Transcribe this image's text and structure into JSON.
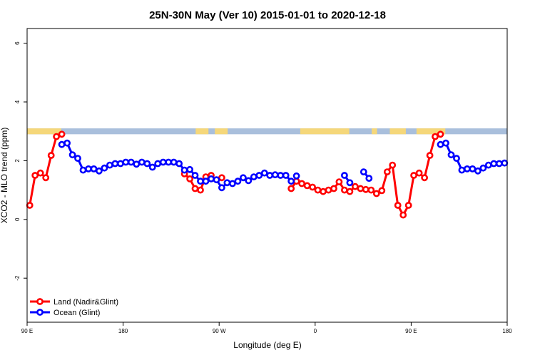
{
  "chart_data": {
    "type": "line",
    "title": "25N-30N May (Ver 10)   2015-01-01 to 2020-12-18",
    "xlabel": "Longitude (deg E)",
    "ylabel": "XCO2 - MLO trend (ppm)",
    "xlim": [
      90,
      540
    ],
    "ylim": [
      -3.5,
      6.5
    ],
    "x_ticks": [
      {
        "value": 90,
        "label": "90 E"
      },
      {
        "value": 180,
        "label": "180"
      },
      {
        "value": 270,
        "label": "90 W"
      },
      {
        "value": 360,
        "label": "0"
      },
      {
        "value": 450,
        "label": "90 E"
      },
      {
        "value": 540,
        "label": "180"
      }
    ],
    "y_ticks": [
      {
        "value": -2,
        "label": "-2"
      },
      {
        "value": 0,
        "label": "0"
      },
      {
        "value": 2,
        "label": "2"
      },
      {
        "value": 4,
        "label": "4"
      },
      {
        "value": 6,
        "label": "6"
      }
    ],
    "legend_position": "bottom-left",
    "colors": {
      "land": "#ff0000",
      "ocean": "#0000ff",
      "land_mask": "#f5d77a",
      "ocean_mask": "#a9bfdc"
    },
    "land_mask_strip": {
      "y_range": [
        2.9,
        3.1
      ],
      "land_intervals": [
        [
          90,
          122
        ],
        [
          248,
          260
        ],
        [
          266,
          278
        ],
        [
          346,
          392
        ],
        [
          413,
          418
        ],
        [
          430,
          445
        ],
        [
          455,
          482
        ]
      ]
    },
    "series": [
      {
        "name": "Land (Nadir&Glint)",
        "color": "#ff0000",
        "segments": [
          [
            [
              92.5,
              0.48
            ],
            [
              97.5,
              1.5
            ],
            [
              102.5,
              1.58
            ],
            [
              107.5,
              1.42
            ],
            [
              112.5,
              2.18
            ],
            [
              117.5,
              2.82
            ],
            [
              122.5,
              2.9
            ]
          ],
          [
            [
              237.5,
              1.55
            ],
            [
              242.5,
              1.38
            ],
            [
              247.5,
              1.05
            ],
            [
              252.5,
              1.0
            ],
            [
              257.5,
              1.45
            ],
            [
              262.5,
              1.5
            ]
          ],
          [
            [
              272.5,
              1.42
            ]
          ],
          [
            [
              337.5,
              1.05
            ],
            [
              342.5,
              1.3
            ],
            [
              347.5,
              1.22
            ],
            [
              352.5,
              1.15
            ],
            [
              357.5,
              1.1
            ],
            [
              362.5,
              1.0
            ],
            [
              367.5,
              0.95
            ],
            [
              372.5,
              1.0
            ],
            [
              377.5,
              1.05
            ],
            [
              382.5,
              1.28
            ],
            [
              387.5,
              1.0
            ],
            [
              392.5,
              0.95
            ],
            [
              397.5,
              1.12
            ],
            [
              402.5,
              1.05
            ],
            [
              407.5,
              1.02
            ],
            [
              412.5,
              1.0
            ],
            [
              417.5,
              0.88
            ],
            [
              422.5,
              0.98
            ],
            [
              427.5,
              1.62
            ],
            [
              432.5,
              1.85
            ],
            [
              437.5,
              0.48
            ],
            [
              442.5,
              0.15
            ],
            [
              447.5,
              0.48
            ],
            [
              452.5,
              1.5
            ],
            [
              457.5,
              1.58
            ],
            [
              462.5,
              1.42
            ],
            [
              467.5,
              2.18
            ],
            [
              472.5,
              2.82
            ],
            [
              477.5,
              2.9
            ]
          ]
        ]
      },
      {
        "name": "Ocean (Glint)",
        "color": "#0000ff",
        "segments": [
          [
            [
              122.5,
              2.55
            ],
            [
              127.5,
              2.6
            ],
            [
              132.5,
              2.2
            ],
            [
              137.5,
              2.08
            ],
            [
              142.5,
              1.68
            ],
            [
              147.5,
              1.72
            ],
            [
              152.5,
              1.72
            ],
            [
              157.5,
              1.65
            ],
            [
              162.5,
              1.75
            ],
            [
              167.5,
              1.85
            ],
            [
              172.5,
              1.9
            ],
            [
              177.5,
              1.9
            ],
            [
              182.5,
              1.95
            ],
            [
              187.5,
              1.95
            ],
            [
              192.5,
              1.88
            ],
            [
              197.5,
              1.95
            ],
            [
              202.5,
              1.9
            ],
            [
              207.5,
              1.78
            ],
            [
              212.5,
              1.9
            ],
            [
              217.5,
              1.95
            ],
            [
              222.5,
              1.95
            ],
            [
              227.5,
              1.95
            ],
            [
              232.5,
              1.9
            ],
            [
              237.5,
              1.68
            ],
            [
              242.5,
              1.7
            ],
            [
              247.5,
              1.5
            ],
            [
              252.5,
              1.3
            ]
          ],
          [
            [
              257.5,
              1.3
            ],
            [
              262.5,
              1.38
            ],
            [
              267.5,
              1.35
            ],
            [
              272.5,
              1.08
            ],
            [
              277.5,
              1.25
            ],
            [
              282.5,
              1.22
            ],
            [
              287.5,
              1.3
            ],
            [
              292.5,
              1.42
            ],
            [
              297.5,
              1.32
            ],
            [
              302.5,
              1.45
            ],
            [
              307.5,
              1.5
            ],
            [
              312.5,
              1.58
            ],
            [
              317.5,
              1.5
            ],
            [
              322.5,
              1.52
            ],
            [
              327.5,
              1.5
            ],
            [
              332.5,
              1.5
            ],
            [
              337.5,
              1.3
            ]
          ],
          [
            [
              342.5,
              1.48
            ]
          ],
          [
            [
              387.5,
              1.5
            ],
            [
              392.5,
              1.25
            ]
          ],
          [
            [
              405.5,
              1.62
            ],
            [
              410.5,
              1.4
            ]
          ],
          [
            [
              477.5,
              2.55
            ],
            [
              482.5,
              2.6
            ],
            [
              487.5,
              2.2
            ],
            [
              492.5,
              2.08
            ],
            [
              497.5,
              1.68
            ],
            [
              502.5,
              1.72
            ],
            [
              507.5,
              1.72
            ],
            [
              512.5,
              1.65
            ],
            [
              517.5,
              1.75
            ],
            [
              522.5,
              1.85
            ],
            [
              527.5,
              1.9
            ],
            [
              532.5,
              1.9
            ],
            [
              537.5,
              1.92
            ]
          ]
        ]
      }
    ]
  }
}
